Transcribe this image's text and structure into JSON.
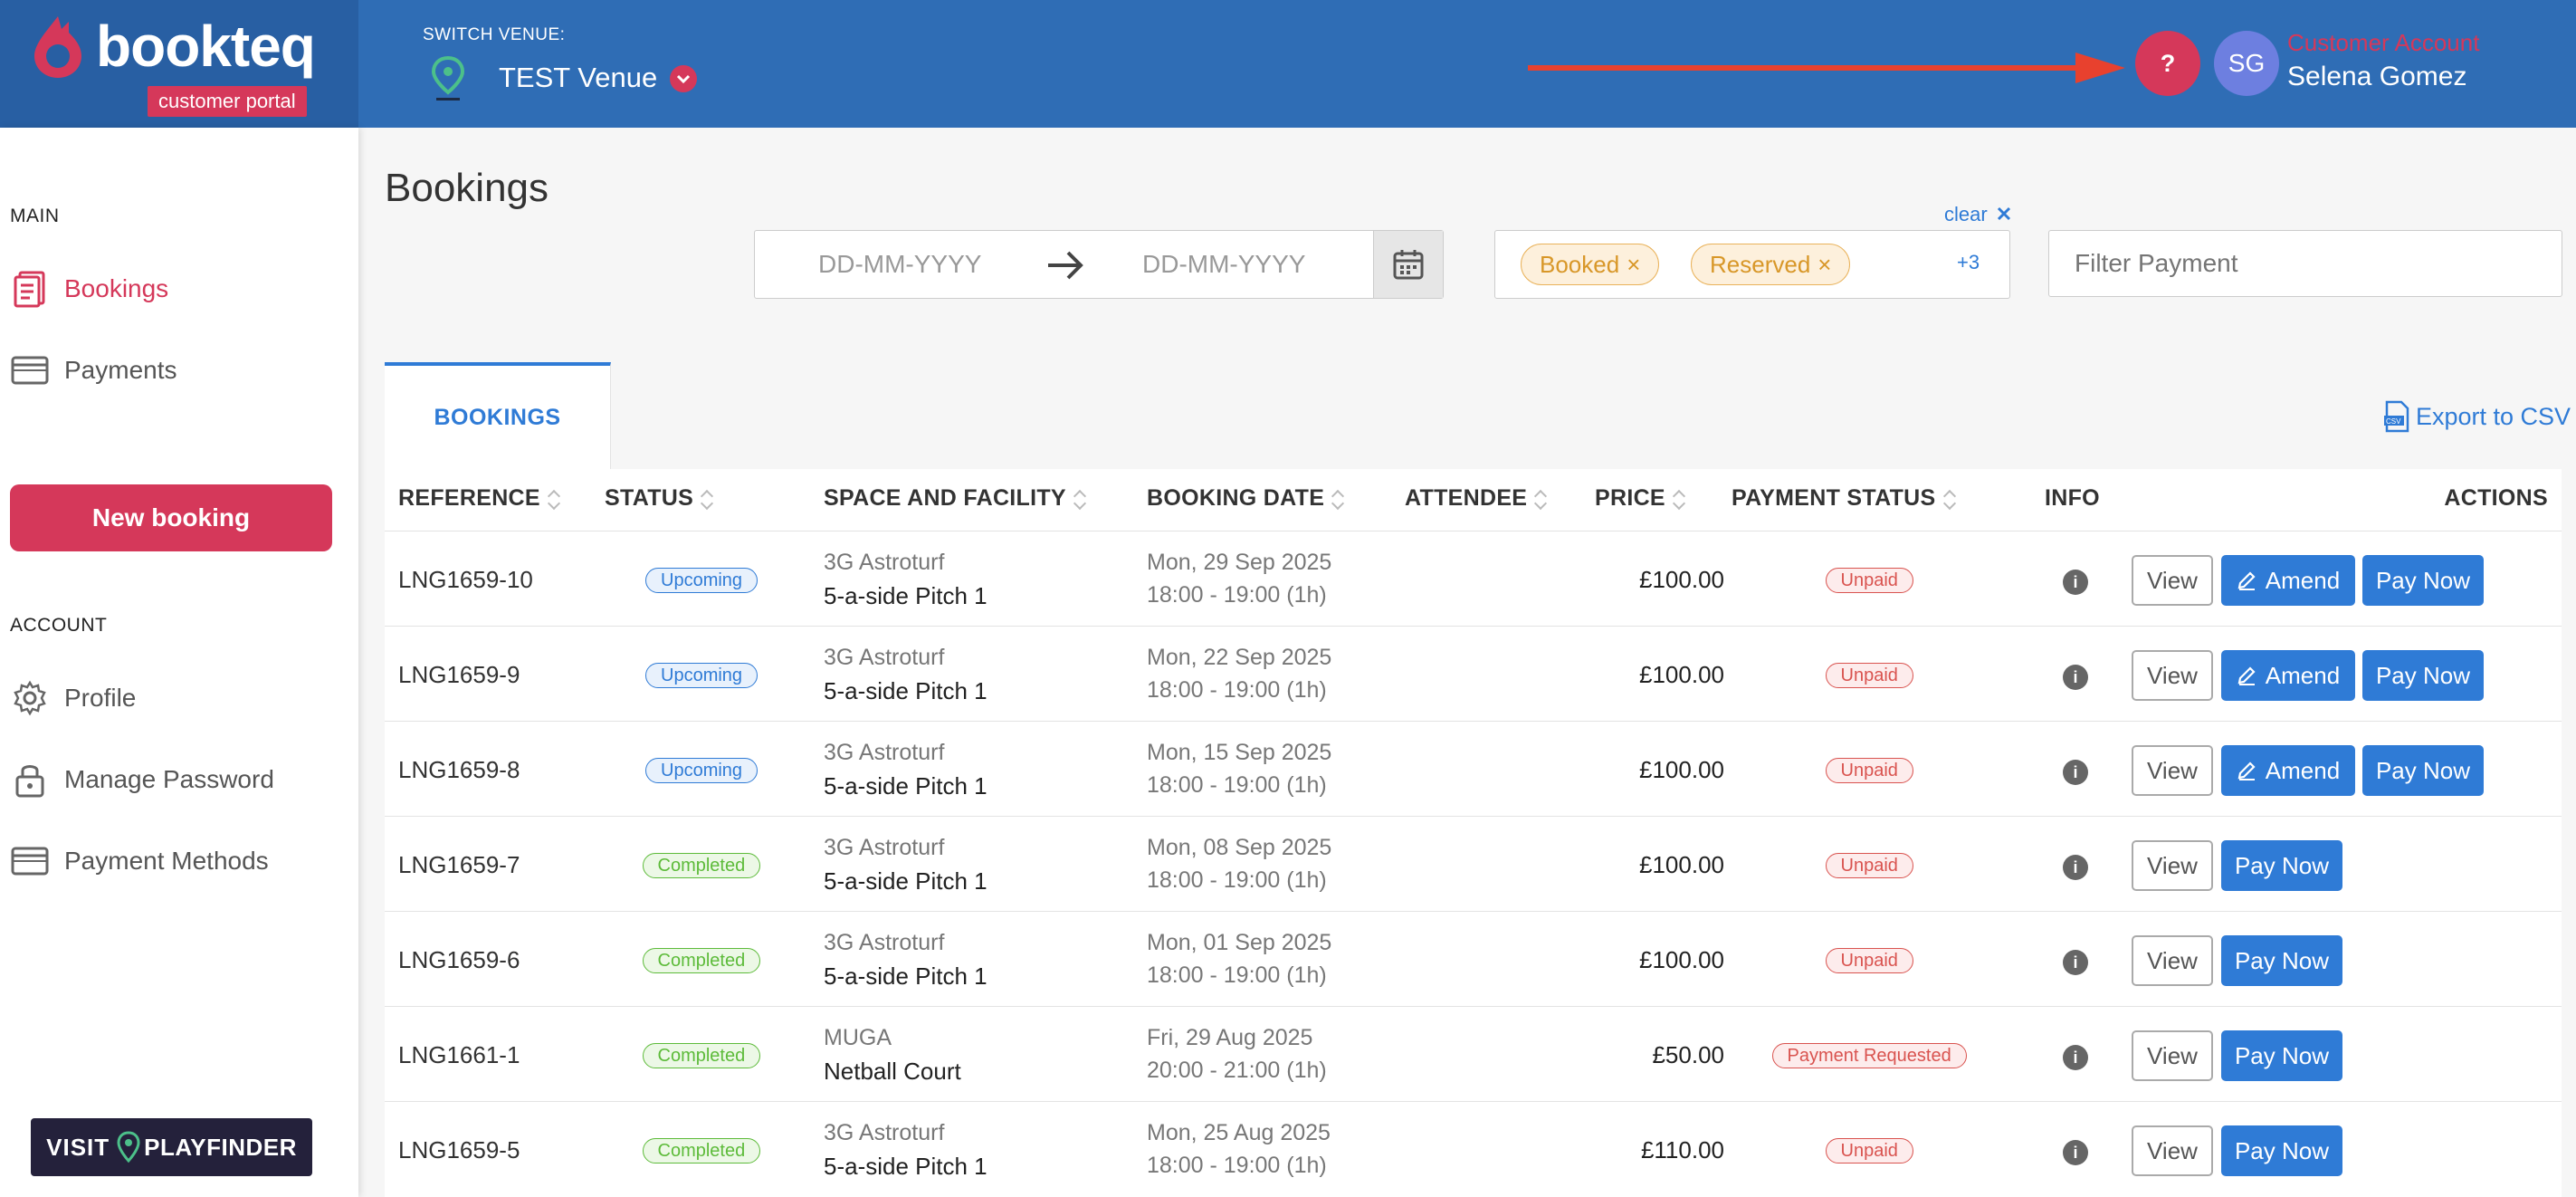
{
  "brand": {
    "name": "bookteq",
    "sub": "customer portal"
  },
  "venue": {
    "switch_label": "SWITCH VENUE:",
    "name": "TEST Venue"
  },
  "account": {
    "help": "?",
    "initials": "SG",
    "type": "Customer Account",
    "name": "Selena Gomez"
  },
  "colors": {
    "primary": "#2f6db5",
    "accent": "#d5385a",
    "link": "#2f7bd6",
    "annotation_arrow": "#e8412e"
  },
  "sidebar": {
    "main_label": "MAIN",
    "main_items": [
      {
        "label": "Bookings",
        "icon": "bookings-icon",
        "active": true
      },
      {
        "label": "Payments",
        "icon": "card-icon",
        "active": false
      }
    ],
    "new_booking": "New booking",
    "account_label": "ACCOUNT",
    "account_items": [
      {
        "label": "Profile",
        "icon": "gear-icon"
      },
      {
        "label": "Manage Password",
        "icon": "lock-icon"
      },
      {
        "label": "Payment Methods",
        "icon": "card-icon"
      }
    ],
    "visit": {
      "prefix": "VISIT",
      "name": "PLAYFINDER"
    }
  },
  "page": {
    "title": "Bookings"
  },
  "filters": {
    "date_start_placeholder": "DD-MM-YYYY",
    "date_end_placeholder": "DD-MM-YYYY",
    "clear": "clear",
    "status_tags": [
      "Booked",
      "Reserved"
    ],
    "status_more": "+3",
    "payment_placeholder": "Filter Payment"
  },
  "tabs": [
    {
      "label": "BOOKINGS",
      "active": true
    }
  ],
  "export_label": "Export to CSV",
  "table": {
    "headers": {
      "reference": "REFERENCE",
      "status": "STATUS",
      "space": "SPACE AND FACILITY",
      "date": "BOOKING DATE",
      "attendee": "ATTENDEE",
      "price": "PRICE",
      "payment": "PAYMENT STATUS",
      "info": "INFO",
      "actions": "ACTIONS"
    },
    "action_labels": {
      "view": "View",
      "amend": "Amend",
      "pay": "Pay Now"
    },
    "rows": [
      {
        "ref": "LNG1659-10",
        "status": "Upcoming",
        "space": "3G Astroturf",
        "pitch": "5-a-side Pitch 1",
        "date": "Mon, 29 Sep 2025",
        "time": "18:00 - 19:00 (1h)",
        "attendee": "",
        "price": "£100.00",
        "payment": "Unpaid",
        "amend": true
      },
      {
        "ref": "LNG1659-9",
        "status": "Upcoming",
        "space": "3G Astroturf",
        "pitch": "5-a-side Pitch 1",
        "date": "Mon, 22 Sep 2025",
        "time": "18:00 - 19:00 (1h)",
        "attendee": "",
        "price": "£100.00",
        "payment": "Unpaid",
        "amend": true
      },
      {
        "ref": "LNG1659-8",
        "status": "Upcoming",
        "space": "3G Astroturf",
        "pitch": "5-a-side Pitch 1",
        "date": "Mon, 15 Sep 2025",
        "time": "18:00 - 19:00 (1h)",
        "attendee": "",
        "price": "£100.00",
        "payment": "Unpaid",
        "amend": true
      },
      {
        "ref": "LNG1659-7",
        "status": "Completed",
        "space": "3G Astroturf",
        "pitch": "5-a-side Pitch 1",
        "date": "Mon, 08 Sep 2025",
        "time": "18:00 - 19:00 (1h)",
        "attendee": "",
        "price": "£100.00",
        "payment": "Unpaid",
        "amend": false
      },
      {
        "ref": "LNG1659-6",
        "status": "Completed",
        "space": "3G Astroturf",
        "pitch": "5-a-side Pitch 1",
        "date": "Mon, 01 Sep 2025",
        "time": "18:00 - 19:00 (1h)",
        "attendee": "",
        "price": "£100.00",
        "payment": "Unpaid",
        "amend": false
      },
      {
        "ref": "LNG1661-1",
        "status": "Completed",
        "space": "MUGA",
        "pitch": "Netball Court",
        "date": "Fri, 29 Aug 2025",
        "time": "20:00 - 21:00 (1h)",
        "attendee": "",
        "price": "£50.00",
        "payment": "Payment Requested",
        "amend": false
      },
      {
        "ref": "LNG1659-5",
        "status": "Completed",
        "space": "3G Astroturf",
        "pitch": "5-a-side Pitch 1",
        "date": "Mon, 25 Aug 2025",
        "time": "18:00 - 19:00 (1h)",
        "attendee": "",
        "price": "£110.00",
        "payment": "Unpaid",
        "amend": false
      }
    ]
  }
}
